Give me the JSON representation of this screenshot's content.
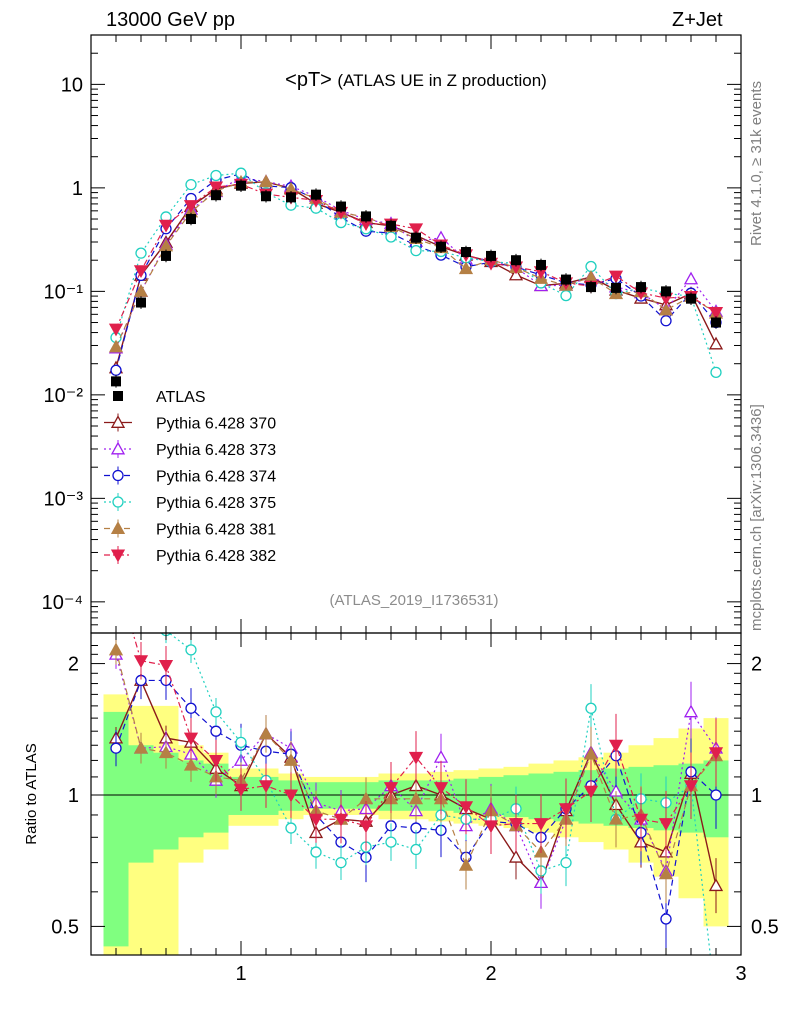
{
  "header": {
    "left": "13000 GeV pp",
    "right": "Z+Jet"
  },
  "side_labels": {
    "rivet": "Rivet 4.1.0, ≥ 31k events",
    "mcplots": "mcplots.cern.ch [arXiv:1306.3436]"
  },
  "chart_data": {
    "type": "line",
    "title_main": "<pT>",
    "title_sub": "(ATLAS UE in Z production)",
    "analysis_id": "(ATLAS_2019_I1736531)",
    "ratio_ylabel": "Ratio to ATLAS",
    "xlim": [
      0.4,
      3.0
    ],
    "ylim": [
      5e-05,
      30
    ],
    "ratio_ylim": [
      0.43,
      2.35
    ],
    "x_ticks": [
      "1",
      "2",
      "3"
    ],
    "y_ticks": [
      "10",
      "1",
      "10⁻¹",
      "10⁻²",
      "10⁻³",
      "10⁻⁴"
    ],
    "ratio_ticks": [
      "2",
      "1",
      "0.5"
    ],
    "x": [
      0.5,
      0.6,
      0.7,
      0.8,
      0.9,
      1.0,
      1.1,
      1.2,
      1.3,
      1.4,
      1.5,
      1.6,
      1.7,
      1.8,
      1.9,
      2.0,
      2.1,
      2.2,
      2.3,
      2.4,
      2.5,
      2.6,
      2.7,
      2.8,
      2.9
    ],
    "data": {
      "name": "ATLAS",
      "color": "#000000",
      "values": [
        0.0135,
        0.078,
        0.22,
        0.5,
        0.85,
        1.05,
        0.83,
        0.81,
        0.86,
        0.66,
        0.53,
        0.43,
        0.33,
        0.27,
        0.24,
        0.22,
        0.2,
        0.18,
        0.13,
        0.11,
        0.108,
        0.11,
        0.1,
        0.085,
        0.05
      ]
    },
    "series": [
      {
        "name": "Pythia 6.428 370",
        "color": "#8b1a1a",
        "marker": "triangle-open",
        "dash": "",
        "ratio": [
          1.35,
          1.83,
          1.35,
          1.32,
          1.15,
          1.05,
          1.38,
          1.22,
          0.82,
          0.88,
          0.87,
          1.0,
          1.05,
          1.0,
          0.93,
          0.88,
          0.72,
          0.63,
          0.92,
          1.25,
          0.95,
          0.78,
          0.74,
          1.12,
          0.62
        ]
      },
      {
        "name": "Pythia 6.428 373",
        "color": "#a020f0",
        "marker": "triangle-open",
        "dash": "2,3",
        "ratio": [
          2.1,
          1.28,
          1.29,
          1.24,
          1.08,
          1.2,
          1.38,
          1.28,
          0.96,
          0.92,
          0.93,
          1.05,
          0.92,
          1.22,
          0.85,
          0.93,
          0.85,
          0.63,
          0.88,
          1.25,
          1.02,
          0.88,
          0.67,
          1.55,
          1.28
        ]
      },
      {
        "name": "Pythia 6.428 374",
        "color": "#1010d0",
        "marker": "circle-open",
        "dash": "6,4",
        "ratio": [
          1.28,
          1.83,
          1.83,
          1.58,
          1.4,
          1.3,
          1.26,
          1.24,
          0.9,
          0.78,
          0.72,
          0.85,
          0.84,
          0.83,
          0.72,
          0.87,
          0.86,
          0.8,
          0.93,
          1.05,
          1.23,
          0.82,
          0.52,
          1.13,
          1.0
        ]
      },
      {
        "name": "Pythia 6.428 375",
        "color": "#20d0c0",
        "marker": "circle-open",
        "dash": "2,3",
        "ratio": [
          2.65,
          3.0,
          2.38,
          2.15,
          1.55,
          1.32,
          1.08,
          0.84,
          0.74,
          0.7,
          0.76,
          0.78,
          0.75,
          0.9,
          0.88,
          0.88,
          0.93,
          0.67,
          0.7,
          1.58,
          0.88,
          0.98,
          0.96,
          1.05,
          0.33
        ]
      },
      {
        "name": "Pythia 6.428 381",
        "color": "#b58045",
        "marker": "triangle-filled",
        "dash": "6,4",
        "ratio": [
          2.15,
          1.28,
          1.25,
          1.17,
          1.1,
          1.08,
          1.38,
          1.2,
          0.92,
          0.88,
          0.98,
          0.98,
          0.98,
          0.98,
          0.69,
          0.92,
          0.85,
          0.74,
          0.88,
          1.24,
          0.88,
          0.9,
          0.66,
          1.05,
          1.23
        ]
      },
      {
        "name": "Pythia 6.428 382",
        "color": "#e0204c",
        "marker": "triangle-down-filled",
        "dash": "6,3,2,3",
        "ratio": [
          3.2,
          2.03,
          1.98,
          1.35,
          1.2,
          1.03,
          1.05,
          1.0,
          0.88,
          0.88,
          0.85,
          1.04,
          1.22,
          1.04,
          0.94,
          0.85,
          0.86,
          0.86,
          0.93,
          1.02,
          1.3,
          0.88,
          0.86,
          1.05,
          1.25
        ]
      }
    ],
    "uncertainty_bands": {
      "stat_color": "#80ff80",
      "total_color": "#ffff80",
      "stat_half": [
        0.55,
        0.3,
        0.25,
        0.2,
        0.18,
        0.1,
        0.1,
        0.08,
        0.07,
        0.07,
        0.07,
        0.08,
        0.08,
        0.08,
        0.09,
        0.1,
        0.11,
        0.12,
        0.13,
        0.14,
        0.15,
        0.16,
        0.17,
        0.18,
        0.2
      ],
      "total_half": [
        0.7,
        0.6,
        0.6,
        0.3,
        0.25,
        0.15,
        0.15,
        0.12,
        0.1,
        0.1,
        0.1,
        0.12,
        0.12,
        0.13,
        0.14,
        0.15,
        0.16,
        0.18,
        0.2,
        0.22,
        0.25,
        0.3,
        0.35,
        0.42,
        0.5
      ]
    }
  }
}
